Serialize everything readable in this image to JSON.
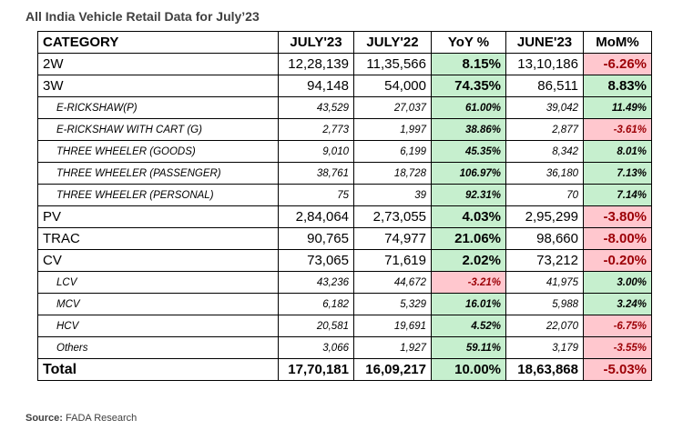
{
  "title": "All India Vehicle Retail Data for July’23",
  "source_label": "Source:",
  "source_text": "FADA Research",
  "headers": [
    "CATEGORY",
    "JULY'23",
    "JULY'22",
    "YoY %",
    "JUNE'23",
    "MoM%"
  ],
  "rows": [
    {
      "kind": "main",
      "category": "2W",
      "jul23": "12,28,139",
      "jul22": "11,35,566",
      "yoy": "8.15%",
      "yoy_sign": "pos",
      "jun23": "13,10,186",
      "mom": "-6.26%",
      "mom_sign": "neg"
    },
    {
      "kind": "main",
      "category": "3W",
      "jul23": "94,148",
      "jul22": "54,000",
      "yoy": "74.35%",
      "yoy_sign": "pos",
      "jun23": "86,511",
      "mom": "8.83%",
      "mom_sign": "pos"
    },
    {
      "kind": "sub",
      "category": "E-RICKSHAW(P)",
      "jul23": "43,529",
      "jul22": "27,037",
      "yoy": "61.00%",
      "yoy_sign": "pos",
      "jun23": "39,042",
      "mom": "11.49%",
      "mom_sign": "pos"
    },
    {
      "kind": "sub",
      "category": "E-RICKSHAW WITH CART (G)",
      "jul23": "2,773",
      "jul22": "1,997",
      "yoy": "38.86%",
      "yoy_sign": "pos",
      "jun23": "2,877",
      "mom": "-3.61%",
      "mom_sign": "neg"
    },
    {
      "kind": "sub",
      "category": "THREE WHEELER (GOODS)",
      "jul23": "9,010",
      "jul22": "6,199",
      "yoy": "45.35%",
      "yoy_sign": "pos",
      "jun23": "8,342",
      "mom": "8.01%",
      "mom_sign": "pos"
    },
    {
      "kind": "sub",
      "category": "THREE WHEELER (PASSENGER)",
      "jul23": "38,761",
      "jul22": "18,728",
      "yoy": "106.97%",
      "yoy_sign": "pos",
      "jun23": "36,180",
      "mom": "7.13%",
      "mom_sign": "pos"
    },
    {
      "kind": "sub",
      "category": "THREE WHEELER (PERSONAL)",
      "jul23": "75",
      "jul22": "39",
      "yoy": "92.31%",
      "yoy_sign": "pos",
      "jun23": "70",
      "mom": "7.14%",
      "mom_sign": "pos"
    },
    {
      "kind": "main",
      "category": "PV",
      "jul23": "2,84,064",
      "jul22": "2,73,055",
      "yoy": "4.03%",
      "yoy_sign": "pos",
      "jun23": "2,95,299",
      "mom": "-3.80%",
      "mom_sign": "neg"
    },
    {
      "kind": "main",
      "category": "TRAC",
      "jul23": "90,765",
      "jul22": "74,977",
      "yoy": "21.06%",
      "yoy_sign": "pos",
      "jun23": "98,660",
      "mom": "-8.00%",
      "mom_sign": "neg"
    },
    {
      "kind": "main",
      "category": "CV",
      "jul23": "73,065",
      "jul22": "71,619",
      "yoy": "2.02%",
      "yoy_sign": "pos",
      "jun23": "73,212",
      "mom": "-0.20%",
      "mom_sign": "neg"
    },
    {
      "kind": "sub",
      "category": "LCV",
      "jul23": "43,236",
      "jul22": "44,672",
      "yoy": "-3.21%",
      "yoy_sign": "neg",
      "jun23": "41,975",
      "mom": "3.00%",
      "mom_sign": "pos"
    },
    {
      "kind": "sub",
      "category": "MCV",
      "jul23": "6,182",
      "jul22": "5,329",
      "yoy": "16.01%",
      "yoy_sign": "pos",
      "jun23": "5,988",
      "mom": "3.24%",
      "mom_sign": "pos"
    },
    {
      "kind": "sub",
      "category": "HCV",
      "jul23": "20,581",
      "jul22": "19,691",
      "yoy": "4.52%",
      "yoy_sign": "pos",
      "jun23": "22,070",
      "mom": "-6.75%",
      "mom_sign": "neg"
    },
    {
      "kind": "sub",
      "category": "Others",
      "jul23": "3,066",
      "jul22": "1,927",
      "yoy": "59.11%",
      "yoy_sign": "pos",
      "jun23": "3,179",
      "mom": "-3.55%",
      "mom_sign": "neg"
    },
    {
      "kind": "total",
      "category": "Total",
      "jul23": "17,70,181",
      "jul22": "16,09,217",
      "yoy": "10.00%",
      "yoy_sign": "pos",
      "jun23": "18,63,868",
      "mom": "-5.03%",
      "mom_sign": "neg"
    }
  ],
  "colors": {
    "positive_fill": "#c6efce",
    "negative_fill": "#ffc7ce",
    "negative_text": "#9c0006"
  }
}
